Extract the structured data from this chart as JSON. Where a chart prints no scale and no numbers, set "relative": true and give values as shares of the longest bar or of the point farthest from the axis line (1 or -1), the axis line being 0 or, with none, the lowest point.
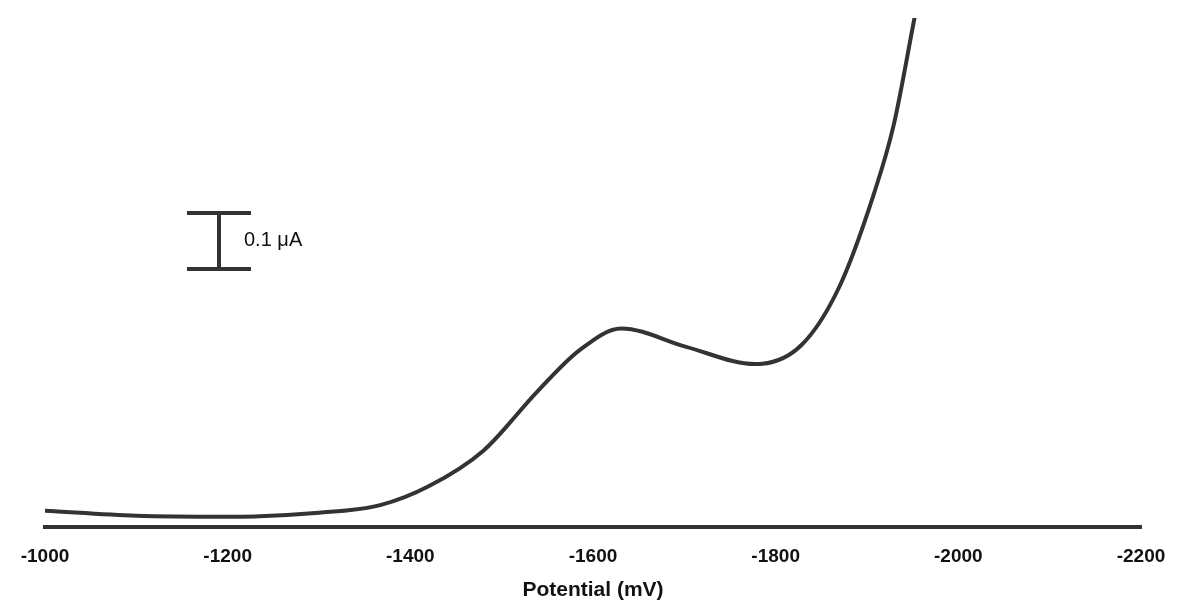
{
  "chart_data": {
    "type": "line",
    "xlabel": "Potential (mV)",
    "relative": true,
    "annotations": [
      "0.1 μA"
    ],
    "xlim": [
      -1000,
      -2200
    ],
    "xticks": [
      -1000,
      -1200,
      -1400,
      -1600,
      -1800,
      -2000,
      -2200
    ],
    "marker": "none",
    "line_style": "solid",
    "x": [
      -1000,
      -1100,
      -1200,
      -1300,
      -1367,
      -1420,
      -1480,
      -1539,
      -1585,
      -1631,
      -1702,
      -1778,
      -1828,
      -1870,
      -1908,
      -1929,
      -1952
    ],
    "series": [
      {
        "color": "#333333",
        "values": [
          0.032,
          0.022,
          0.02,
          0.028,
          0.043,
          0.08,
          0.15,
          0.266,
          0.347,
          0.39,
          0.354,
          0.32,
          0.357,
          0.473,
          0.657,
          0.788,
          1.0
        ]
      }
    ]
  }
}
